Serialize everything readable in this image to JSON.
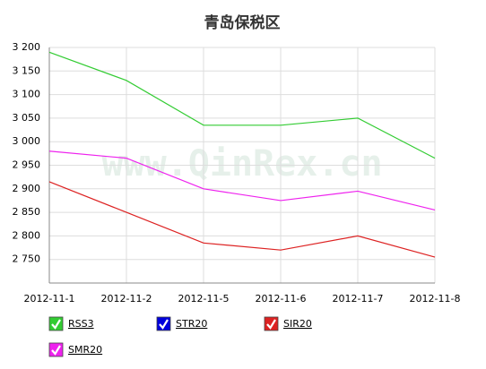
{
  "chart_data": {
    "type": "line",
    "title": "青岛保税区",
    "watermark": "www.QinRex.cn",
    "categories": [
      "2012-11-1",
      "2012-11-2",
      "2012-11-5",
      "2012-11-6",
      "2012-11-7",
      "2012-11-8"
    ],
    "series": [
      {
        "name": "RSS3",
        "color": "#33cc33",
        "values": [
          3190,
          3130,
          3035,
          3035,
          3050,
          2965
        ]
      },
      {
        "name": "STR20",
        "color": "#0000dd",
        "values": [
          null,
          null,
          null,
          null,
          null,
          null
        ]
      },
      {
        "name": "SIR20",
        "color": "#dd2222",
        "values": [
          2915,
          2850,
          2785,
          2770,
          2800,
          2755
        ]
      },
      {
        "name": "SMR20",
        "color": "#ee22ee",
        "values": [
          2980,
          2965,
          2900,
          2875,
          2895,
          2855
        ]
      }
    ],
    "ylim": [
      2700,
      3200
    ],
    "yticks": [
      {
        "value": 2750,
        "label": "2 750"
      },
      {
        "value": 2800,
        "label": "2 800"
      },
      {
        "value": 2850,
        "label": "2 850"
      },
      {
        "value": 2900,
        "label": "2 900"
      },
      {
        "value": 2950,
        "label": "2 950"
      },
      {
        "value": 3000,
        "label": "3 000"
      },
      {
        "value": 3050,
        "label": "3 050"
      },
      {
        "value": 3100,
        "label": "3 100"
      },
      {
        "value": 3150,
        "label": "3 150"
      },
      {
        "value": 3200,
        "label": "3 200"
      }
    ],
    "grid": true
  }
}
